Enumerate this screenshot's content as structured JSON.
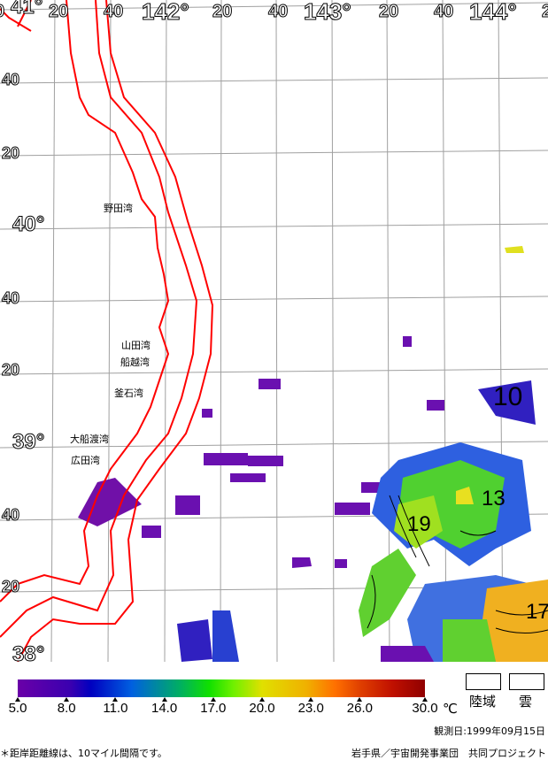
{
  "map": {
    "longitude_labels": [
      {
        "text": "0",
        "major": false
      },
      {
        "text": "20",
        "major": false
      },
      {
        "text": "40",
        "major": false
      },
      {
        "text": "142°",
        "major": true
      },
      {
        "text": "20",
        "major": false
      },
      {
        "text": "40",
        "major": false
      },
      {
        "text": "143°",
        "major": true
      },
      {
        "text": "20",
        "major": false
      },
      {
        "text": "40",
        "major": false
      },
      {
        "text": "144°",
        "major": true
      },
      {
        "text": "2",
        "major": false
      }
    ],
    "latitude_labels": [
      {
        "text": "41°",
        "major": true
      },
      {
        "text": "40",
        "major": false
      },
      {
        "text": "20",
        "major": false
      },
      {
        "text": "40°",
        "major": true
      },
      {
        "text": "40",
        "major": false
      },
      {
        "text": "20",
        "major": false
      },
      {
        "text": "39°",
        "major": true
      },
      {
        "text": "40",
        "major": false
      },
      {
        "text": "20",
        "major": false
      },
      {
        "text": "38°",
        "major": true
      }
    ],
    "places": [
      "野田湾",
      "山田湾",
      "船越湾",
      "釜石湾",
      "大船渡湾",
      "広田湾"
    ],
    "contour_labels": [
      "10",
      "13",
      "19",
      "17"
    ],
    "coastline_color": "#ff0000",
    "grid_color": "#a0a0a0"
  },
  "legend": {
    "ticks": [
      "5.0",
      "8.0",
      "11.0",
      "14.0",
      "17.0",
      "20.0",
      "23.0",
      "26.0",
      "30.0"
    ],
    "unit": "℃",
    "land_label": "陸域",
    "cloud_label": "雲"
  },
  "footer": {
    "observation_date": "観測日:1999年09月15日",
    "note": "＊距岸距離線は、10マイル間隔です。",
    "credit": "岩手県／宇宙開発事業団　共同プロジェクト"
  }
}
